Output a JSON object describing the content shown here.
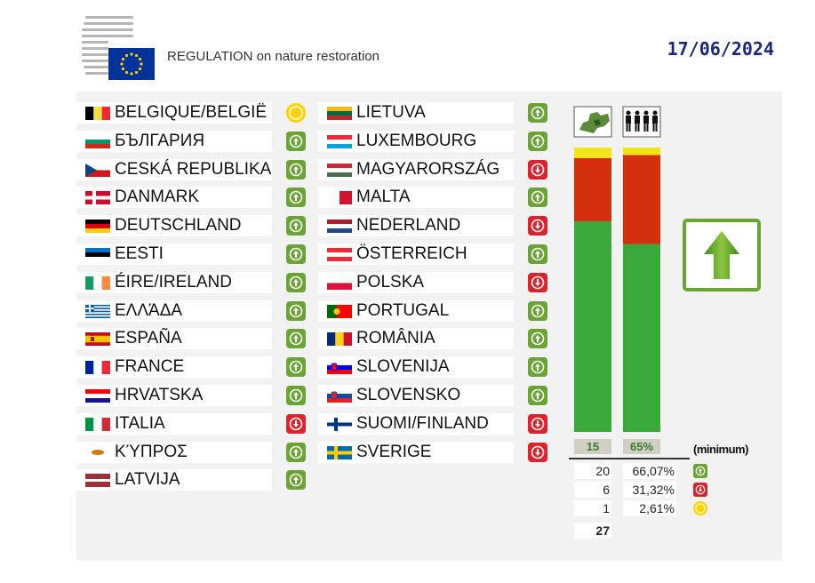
{
  "header": {
    "title": "REGULATION on nature restoration",
    "date": "17/06/2024",
    "logo": "eu-council-logo"
  },
  "countries": [
    {
      "name": "BELGIQUE/BELGIË",
      "vote": "abstain",
      "flag": [
        "#000000",
        "#fae042",
        "#ed2939"
      ],
      "flag_type": "v3"
    },
    {
      "name": "БЪЛГАРИЯ",
      "vote": "for",
      "flag": [
        "#ffffff",
        "#00966e",
        "#d62612"
      ],
      "flag_type": "h3"
    },
    {
      "name": "CESKÁ REPUBLIKA",
      "vote": "for",
      "flag": [
        "#ffffff",
        "#d7141a",
        "#11457e"
      ],
      "flag_type": "cz"
    },
    {
      "name": "DANMARK",
      "vote": "for",
      "flag": [
        "#c8102e",
        "#ffffff"
      ],
      "flag_type": "nordic"
    },
    {
      "name": "DEUTSCHLAND",
      "vote": "for",
      "flag": [
        "#000000",
        "#dd0000",
        "#ffce00"
      ],
      "flag_type": "h3"
    },
    {
      "name": "EESTI",
      "vote": "for",
      "flag": [
        "#0072ce",
        "#000000",
        "#ffffff"
      ],
      "flag_type": "h3"
    },
    {
      "name": "ÉIRE/IRELAND",
      "vote": "for",
      "flag": [
        "#169b62",
        "#ffffff",
        "#ff883e"
      ],
      "flag_type": "v3"
    },
    {
      "name": "ΕΛΛΆΔΑ",
      "vote": "for",
      "flag": [
        "#0d5eaf",
        "#ffffff"
      ],
      "flag_type": "stripes"
    },
    {
      "name": "ESPAÑA",
      "vote": "for",
      "flag": [
        "#c60b1e",
        "#ffc400",
        "#c60b1e"
      ],
      "flag_type": "es"
    },
    {
      "name": "FRANCE",
      "vote": "for",
      "flag": [
        "#002395",
        "#ffffff",
        "#ed2939"
      ],
      "flag_type": "v3"
    },
    {
      "name": "HRVATSKA",
      "vote": "for",
      "flag": [
        "#ff0000",
        "#ffffff",
        "#171796"
      ],
      "flag_type": "h3"
    },
    {
      "name": "ITALIA",
      "vote": "against",
      "flag": [
        "#009246",
        "#ffffff",
        "#ce2b37"
      ],
      "flag_type": "v3"
    },
    {
      "name": "ΚΎΠΡΟΣ",
      "vote": "for",
      "flag": [
        "#ffffff",
        "#d57800",
        "#ffffff"
      ],
      "flag_type": "cy"
    },
    {
      "name": "LATVIJA",
      "vote": "for",
      "flag": [
        "#9e3039",
        "#ffffff",
        "#9e3039"
      ],
      "flag_type": "lv"
    },
    {
      "name": "LIETUVA",
      "vote": "for",
      "flag": [
        "#fdb913",
        "#006a44",
        "#c1272d"
      ],
      "flag_type": "h3"
    },
    {
      "name": "LUXEMBOURG",
      "vote": "for",
      "flag": [
        "#ed2939",
        "#ffffff",
        "#00a1de"
      ],
      "flag_type": "h3"
    },
    {
      "name": "MAGYARORSZÁG",
      "vote": "against",
      "flag": [
        "#ce2939",
        "#ffffff",
        "#477050"
      ],
      "flag_type": "h3"
    },
    {
      "name": "MALTA",
      "vote": "for",
      "flag": [
        "#ffffff",
        "#cf142b"
      ],
      "flag_type": "v2"
    },
    {
      "name": "NEDERLAND",
      "vote": "against",
      "flag": [
        "#ae1c28",
        "#ffffff",
        "#21468b"
      ],
      "flag_type": "h3"
    },
    {
      "name": "ÖSTERREICH",
      "vote": "for",
      "flag": [
        "#ed2939",
        "#ffffff",
        "#ed2939"
      ],
      "flag_type": "h3"
    },
    {
      "name": "POLSKA",
      "vote": "against",
      "flag": [
        "#ffffff",
        "#dc143c"
      ],
      "flag_type": "h2"
    },
    {
      "name": "PORTUGAL",
      "vote": "for",
      "flag": [
        "#006600",
        "#ff0000"
      ],
      "flag_type": "pt"
    },
    {
      "name": "ROMÂNIA",
      "vote": "for",
      "flag": [
        "#002b7f",
        "#fcd116",
        "#ce1126"
      ],
      "flag_type": "v3"
    },
    {
      "name": "SLOVENIJA",
      "vote": "for",
      "flag": [
        "#ffffff",
        "#0000ff",
        "#ff0000"
      ],
      "flag_type": "h3c"
    },
    {
      "name": "SLOVENSKO",
      "vote": "for",
      "flag": [
        "#ffffff",
        "#0b4ea2",
        "#ee1c25"
      ],
      "flag_type": "h3c"
    },
    {
      "name": "SUOMI/FINLAND",
      "vote": "against",
      "flag": [
        "#ffffff",
        "#003580"
      ],
      "flag_type": "nordic"
    },
    {
      "name": "SVERIGE",
      "vote": "against",
      "flag": [
        "#006aa7",
        "#fecc00"
      ],
      "flag_type": "nordic"
    }
  ],
  "colors": {
    "for": "#6aa436",
    "against": "#d9232d",
    "abstain": "#ffd200",
    "bar_green": "#3aa83a",
    "bar_red": "#d32f0e",
    "bar_yellow": "#f0e51a"
  },
  "chart_data": {
    "type": "bar",
    "categories": [
      "member-states",
      "population"
    ],
    "stacked": true,
    "series": [
      {
        "values": [
          20,
          66.07
        ]
      },
      {
        "values": [
          6,
          31.32
        ]
      },
      {
        "values": [
          1,
          2.61
        ]
      }
    ],
    "thresholds": [
      "15",
      "65%"
    ],
    "threshold_note": "(minimum)",
    "result": "adopted"
  },
  "summary": {
    "rows": [
      {
        "count": "20",
        "pct": "66,07%",
        "vote": "for"
      },
      {
        "count": "6",
        "pct": "31,32%",
        "vote": "against"
      },
      {
        "count": "1",
        "pct": "2,61%",
        "vote": "abstain"
      }
    ],
    "total": "27"
  }
}
